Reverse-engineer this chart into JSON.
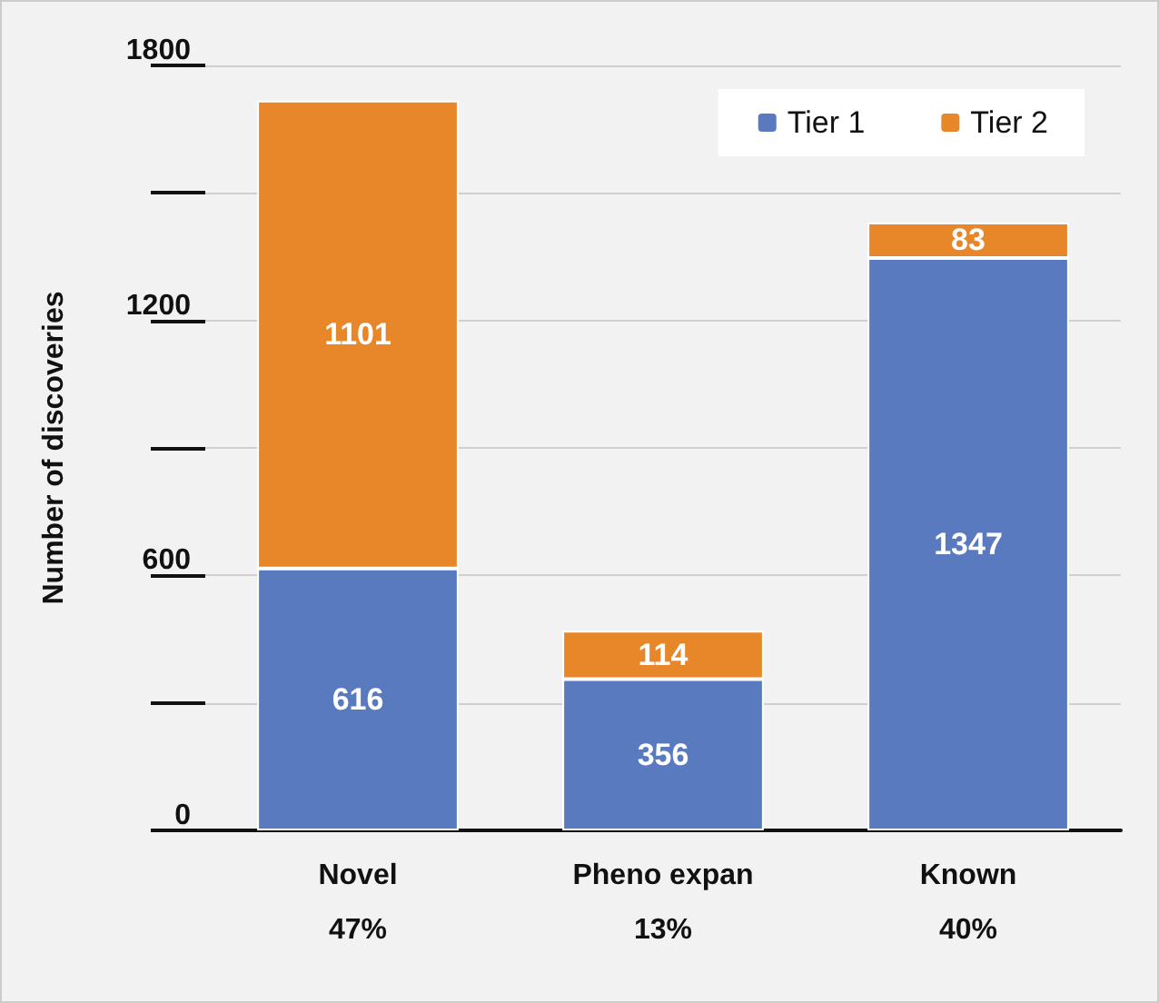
{
  "chart_data": {
    "type": "bar",
    "stacked": true,
    "ylabel": "Number of discoveries",
    "categories": [
      "Novel\n47%",
      "Pheno expan\n13%",
      "Known\n40%"
    ],
    "series": [
      {
        "name": "Tier 1",
        "color": "#5a7abf",
        "values": [
          616,
          356,
          1347
        ]
      },
      {
        "name": "Tier 2",
        "color": "#e8862a",
        "values": [
          1101,
          114,
          83
        ]
      }
    ],
    "ylim": [
      0,
      1800
    ],
    "yticks": [
      0,
      {
        "value": 300,
        "label": null
      },
      600,
      {
        "value": 900,
        "label": null
      },
      1200,
      {
        "value": 1500,
        "label": null
      },
      1800
    ],
    "grid": "y",
    "legend": "top right",
    "data_labels": true
  }
}
